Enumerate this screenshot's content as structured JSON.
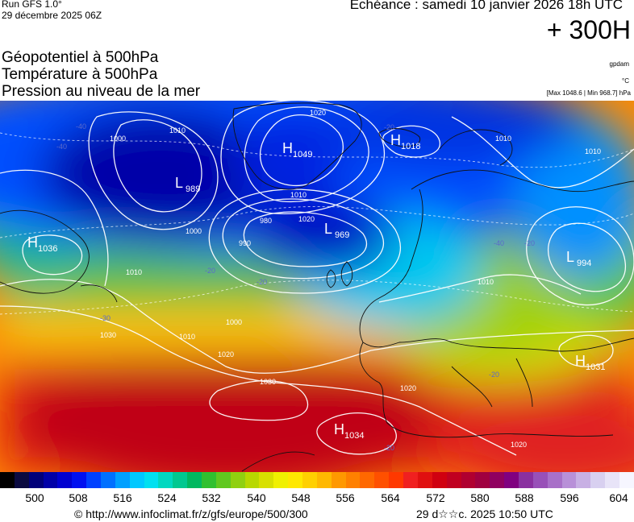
{
  "header": {
    "run": "Run GFS 1.0°",
    "run_date": "29 décembre 2025 06Z",
    "forecast": "Echéance : samedi 10 janvier 2026 18h UTC",
    "forecast_hour": "+ 300H"
  },
  "titles": [
    "Géopotentiel à 500hPa",
    "Température à 500hPa",
    "Pression au niveau de la mer"
  ],
  "units": {
    "geopotential": "gpdam",
    "temperature": "°C",
    "pressure_range": "[Max 1048.6 | Min 968.7] hPa"
  },
  "map": {
    "pressure_centers": [
      {
        "type": "H",
        "value": "1049"
      },
      {
        "type": "L",
        "value": "989"
      },
      {
        "type": "H",
        "value": "1036"
      },
      {
        "type": "L",
        "value": "969"
      },
      {
        "type": "L",
        "value": "994"
      },
      {
        "type": "H",
        "value": "1034"
      },
      {
        "type": "H",
        "value": "1018"
      },
      {
        "type": "H",
        "value": "1031"
      }
    ],
    "isobar_labels": [
      "1020",
      "1010",
      "1000",
      "1010",
      "1020",
      "1000",
      "980",
      "990",
      "1010",
      "1000",
      "1010",
      "1020",
      "1030",
      "1030",
      "1010",
      "1010",
      "1010",
      "1020",
      "1020"
    ],
    "isotherm_labels": [
      "-40",
      "-40",
      "-40",
      "-20",
      "-20",
      "-20",
      "-30",
      "-20",
      "-20",
      "-20"
    ]
  },
  "colorbar": {
    "ticks": [
      "500",
      "508",
      "516",
      "524",
      "532",
      "540",
      "548",
      "556",
      "564",
      "572",
      "580",
      "588",
      "596",
      "604"
    ],
    "colors": [
      "#000000",
      "#0a0a40",
      "#00007a",
      "#0000a8",
      "#0000d0",
      "#0010f0",
      "#0040ff",
      "#0070ff",
      "#00a0ff",
      "#00c8ff",
      "#00e0f0",
      "#00d8c0",
      "#00c890",
      "#00b860",
      "#30c030",
      "#60c820",
      "#90d010",
      "#b8d800",
      "#d8e000",
      "#f0f000",
      "#ffe800",
      "#ffd000",
      "#ffb800",
      "#ff9800",
      "#ff8000",
      "#ff6800",
      "#ff5000",
      "#ff3800",
      "#f02020",
      "#e01010",
      "#d00010",
      "#c00020",
      "#b00030",
      "#a00040",
      "#900060",
      "#800080",
      "#8a30a0",
      "#9850b8",
      "#a870c8",
      "#b890d8",
      "#c8b0e4",
      "#d8d0f0",
      "#e8e4f8",
      "#f6f6ff"
    ]
  },
  "footer": {
    "copyright": "© http://www.infoclimat.fr/z/gfs/europe/500/300",
    "issued": "29 d☆☆c. 2025 10:50 UTC"
  }
}
